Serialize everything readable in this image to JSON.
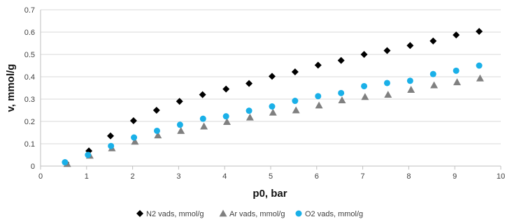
{
  "chart_data": {
    "type": "scatter",
    "xlabel": "p0, bar",
    "ylabel": "v, mmol/g",
    "xlim": [
      0,
      10
    ],
    "ylim": [
      0,
      0.7
    ],
    "x_ticks": [
      "0",
      "1",
      "2",
      "3",
      "4",
      "5",
      "6",
      "7",
      "8",
      "9",
      "10"
    ],
    "y_ticks": [
      "0",
      "0.1",
      "0.2",
      "0.3",
      "0.4",
      "0.5",
      "0.6",
      "0.7"
    ],
    "grid": "horizontal",
    "legend_position": "bottom",
    "series": [
      {
        "name": "N2 vads, mmol/g",
        "marker": "diamond",
        "color": "#000000",
        "x": [
          0.55,
          1.05,
          1.52,
          2.02,
          2.52,
          3.02,
          3.52,
          4.03,
          4.53,
          5.03,
          5.53,
          6.03,
          6.53,
          7.03,
          7.53,
          8.03,
          8.53,
          9.03,
          9.53
        ],
        "y": [
          0.015,
          0.068,
          0.135,
          0.203,
          0.25,
          0.29,
          0.32,
          0.345,
          0.37,
          0.402,
          0.422,
          0.452,
          0.473,
          0.5,
          0.517,
          0.54,
          0.56,
          0.587,
          0.603
        ]
      },
      {
        "name": "Ar vads, mmol/g",
        "marker": "triangle",
        "color": "#808080",
        "x": [
          0.58,
          1.07,
          1.55,
          2.05,
          2.55,
          3.05,
          3.55,
          4.05,
          4.55,
          5.05,
          5.55,
          6.05,
          6.55,
          7.05,
          7.55,
          8.05,
          8.55,
          9.05,
          9.55
        ],
        "y": [
          0.01,
          0.047,
          0.08,
          0.11,
          0.138,
          0.158,
          0.178,
          0.198,
          0.218,
          0.24,
          0.25,
          0.272,
          0.295,
          0.31,
          0.32,
          0.342,
          0.362,
          0.376,
          0.393
        ]
      },
      {
        "name": "O2 vads, mmol/g",
        "marker": "circle",
        "color": "#1ab0e8",
        "x": [
          0.53,
          1.03,
          1.53,
          2.03,
          2.53,
          3.03,
          3.53,
          4.03,
          4.53,
          5.03,
          5.53,
          6.03,
          6.53,
          7.03,
          7.53,
          8.03,
          8.53,
          9.03,
          9.53
        ],
        "y": [
          0.017,
          0.05,
          0.09,
          0.128,
          0.158,
          0.185,
          0.212,
          0.223,
          0.248,
          0.267,
          0.292,
          0.313,
          0.327,
          0.358,
          0.372,
          0.382,
          0.412,
          0.427,
          0.45
        ]
      }
    ]
  }
}
